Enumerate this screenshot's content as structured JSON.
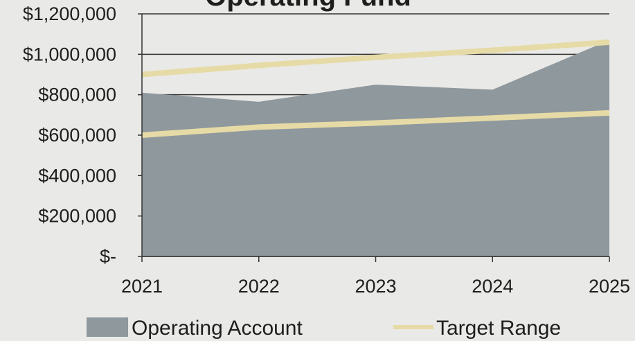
{
  "chart_data": {
    "type": "area",
    "title": "Operating Fund",
    "x": [
      2021,
      2022,
      2023,
      2024,
      2025
    ],
    "xlim": [
      2021,
      2025
    ],
    "xticks": [
      2021,
      2022,
      2023,
      2024,
      2025
    ],
    "ylim": [
      0,
      1200000
    ],
    "yticks": [
      {
        "value": 0,
        "label": "$-"
      },
      {
        "value": 200000,
        "label": "$200,000"
      },
      {
        "value": 400000,
        "label": "$400,000"
      },
      {
        "value": 600000,
        "label": "$600,000"
      },
      {
        "value": 800000,
        "label": "$800,000"
      },
      {
        "value": 1000000,
        "label": "$1,000,000"
      },
      {
        "value": 1200000,
        "label": "$1,200,000"
      }
    ],
    "grid": true,
    "series": [
      {
        "name": "Operating Account",
        "color": "#8f989d",
        "values": [
          810000,
          765000,
          850000,
          825000,
          1070000
        ]
      },
      {
        "name": "Target Range",
        "color": "#e6dba6",
        "low": [
          600000,
          640000,
          660000,
          685000,
          710000
        ],
        "high": [
          900000,
          945000,
          985000,
          1020000,
          1060000
        ]
      }
    ]
  }
}
